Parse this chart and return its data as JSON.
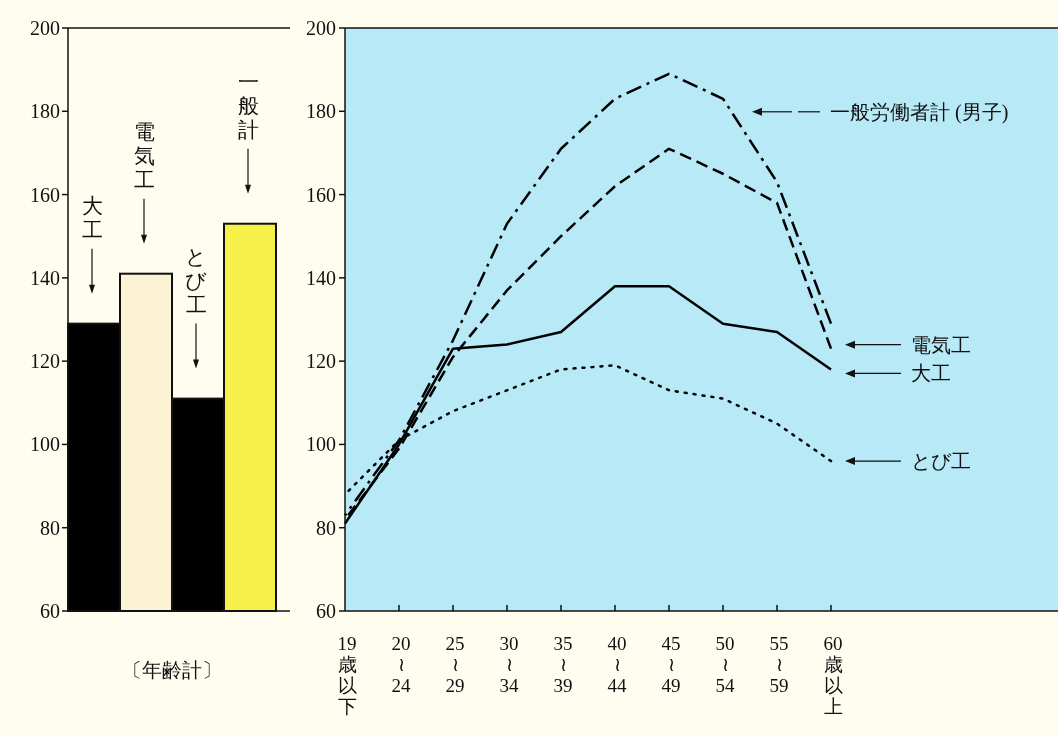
{
  "chart_data": [
    {
      "type": "bar",
      "categories": [
        "大工",
        "電気工",
        "とび工",
        "一般計"
      ],
      "values": [
        129,
        141,
        111,
        153
      ],
      "colors": [
        "#000000",
        "#fbf3d4",
        "#000000",
        "#f7ef4a"
      ],
      "xlabel": "〔年齢計〕",
      "ylim": [
        60,
        200
      ],
      "yticks": [
        60,
        80,
        100,
        120,
        140,
        160,
        180,
        200
      ],
      "grid": false
    },
    {
      "type": "line",
      "categories": [
        "19歳以下",
        "20\n≀\n24",
        "25\n≀\n29",
        "30\n≀\n34",
        "35\n≀\n39",
        "40\n≀\n44",
        "45\n≀\n49",
        "50\n≀\n54",
        "55\n≀\n59",
        "60歳以上"
      ],
      "ylim": [
        60,
        200
      ],
      "yticks": [
        60,
        80,
        100,
        120,
        140,
        160,
        180,
        200
      ],
      "grid": false,
      "marker": "none",
      "series": [
        {
          "name": "一般労働者計 (男子)",
          "color": "#000000",
          "line_style": "dashdot",
          "values": [
            83,
            101,
            125,
            153,
            171,
            183,
            189,
            183,
            163,
            129
          ]
        },
        {
          "name": "電気工",
          "color": "#000000",
          "line_style": "dashed",
          "values": [
            82,
            99,
            121,
            137,
            150,
            162,
            171,
            165,
            158,
            123
          ]
        },
        {
          "name": "大工",
          "color": "#000000",
          "line_style": "solid",
          "values": [
            81,
            100,
            123,
            124,
            127,
            138,
            138,
            129,
            127,
            118
          ]
        },
        {
          "name": "とび工",
          "color": "#000000",
          "line_style": "dotted",
          "values": [
            88,
            101,
            108,
            113,
            118,
            119,
            113,
            111,
            105,
            96
          ]
        }
      ]
    }
  ]
}
